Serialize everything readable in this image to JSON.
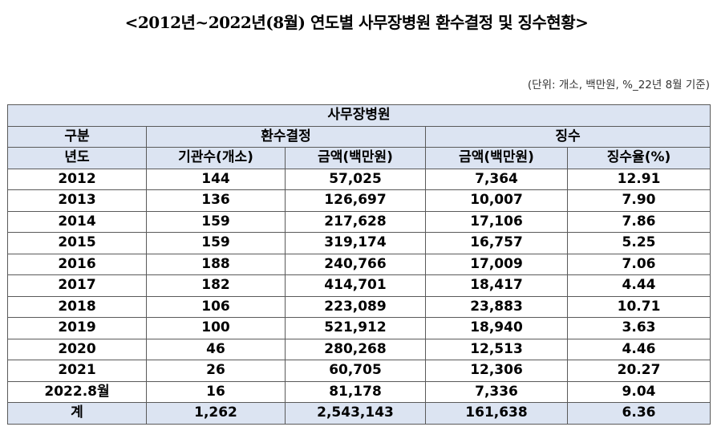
{
  "title": "<2012년~2022년(8월) 연도별 사무장병원 환수결정 및 징수현황>",
  "unit_note": "(단위: 개소, 백만원, %_22년 8월 기준)",
  "table": {
    "group_header": "사무장병원",
    "header_row2": {
      "category": "구분",
      "refund_decision": "환수결정",
      "collection": "징수"
    },
    "header_row3": {
      "year": "년도",
      "institutions": "기관수(개소)",
      "refund_amount": "금액(백만원)",
      "collected_amount": "금액(백만원)",
      "collection_rate": "징수율(%)"
    },
    "rows": [
      {
        "year": "2012",
        "institutions": "144",
        "refund_amount": "57,025",
        "collected_amount": "7,364",
        "collection_rate": "12.91"
      },
      {
        "year": "2013",
        "institutions": "136",
        "refund_amount": "126,697",
        "collected_amount": "10,007",
        "collection_rate": "7.90"
      },
      {
        "year": "2014",
        "institutions": "159",
        "refund_amount": "217,628",
        "collected_amount": "17,106",
        "collection_rate": "7.86"
      },
      {
        "year": "2015",
        "institutions": "159",
        "refund_amount": "319,174",
        "collected_amount": "16,757",
        "collection_rate": "5.25"
      },
      {
        "year": "2016",
        "institutions": "188",
        "refund_amount": "240,766",
        "collected_amount": "17,009",
        "collection_rate": "7.06"
      },
      {
        "year": "2017",
        "institutions": "182",
        "refund_amount": "414,701",
        "collected_amount": "18,417",
        "collection_rate": "4.44"
      },
      {
        "year": "2018",
        "institutions": "106",
        "refund_amount": "223,089",
        "collected_amount": "23,883",
        "collection_rate": "10.71"
      },
      {
        "year": "2019",
        "institutions": "100",
        "refund_amount": "521,912",
        "collected_amount": "18,940",
        "collection_rate": "3.63"
      },
      {
        "year": "2020",
        "institutions": "46",
        "refund_amount": "280,268",
        "collected_amount": "12,513",
        "collection_rate": "4.46"
      },
      {
        "year": "2021",
        "institutions": "26",
        "refund_amount": "60,705",
        "collected_amount": "12,306",
        "collection_rate": "20.27"
      },
      {
        "year": "2022.8월",
        "institutions": "16",
        "refund_amount": "81,178",
        "collected_amount": "7,336",
        "collection_rate": "9.04"
      }
    ],
    "total": {
      "label": "계",
      "institutions": "1,262",
      "refund_amount": "2,543,143",
      "collected_amount": "161,638",
      "collection_rate": "6.36"
    }
  },
  "colors": {
    "header_fill": "#dce4f2",
    "border": "#5a5a5a"
  }
}
